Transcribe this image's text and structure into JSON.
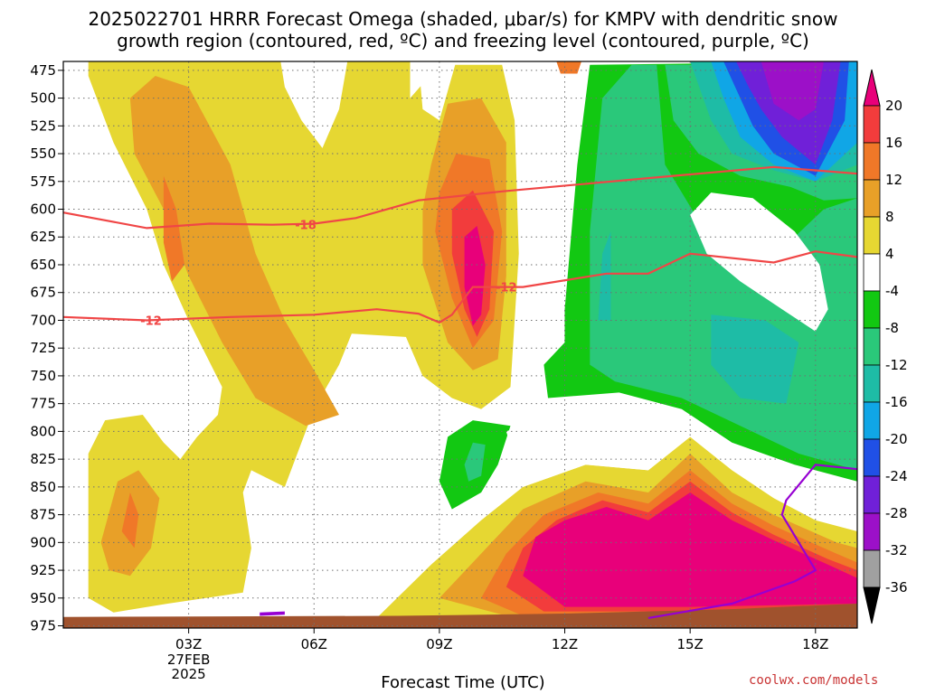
{
  "title_line1": "2025022701 HRRR Forecast Omega (shaded, μbar/s) for KMPV with dendritic snow",
  "title_line2": "growth region (contoured, red, ºC) and freezing level (contoured, purple, ºC)",
  "credit": "coolwx.com/models",
  "chart_data": {
    "type": "heatmap",
    "xlabel": "Forecast Time (UTC)",
    "x_ticks": [
      "03Z",
      "06Z",
      "09Z",
      "12Z",
      "15Z",
      "18Z"
    ],
    "x_tick_sublabels": [
      "27FEB",
      "2025"
    ],
    "y_ticks": [
      475,
      500,
      525,
      550,
      575,
      600,
      625,
      650,
      675,
      700,
      725,
      750,
      775,
      800,
      825,
      850,
      875,
      900,
      925,
      950,
      975
    ],
    "y_axis": "pressure (hPa), inverted",
    "grid": true,
    "colorbar_ticks": [
      20,
      16,
      12,
      8,
      4,
      -4,
      -8,
      -12,
      -16,
      -20,
      -24,
      -28,
      -32,
      -36
    ],
    "colorbar_colors": [
      "#e8007a",
      "#f23c3c",
      "#f07828",
      "#e8a028",
      "#e6d732",
      "#ffffff",
      "#12c812",
      "#2ac87a",
      "#1ebca6",
      "#10a6e6",
      "#2050e6",
      "#7020d8",
      "#9c10c8",
      "#a0a0a0",
      "#000000"
    ],
    "contours": [
      {
        "label": "-18",
        "color": "#f04646",
        "points": [
          [
            0.0,
            603
          ],
          [
            2.0,
            617
          ],
          [
            3.5,
            613
          ],
          [
            5.0,
            614
          ],
          [
            6.0,
            613
          ],
          [
            7.0,
            608
          ],
          [
            8.5,
            592
          ],
          [
            10.5,
            584
          ],
          [
            14.0,
            572
          ],
          [
            17.0,
            562
          ],
          [
            18.0,
            565
          ],
          [
            19.0,
            568
          ]
        ]
      },
      {
        "label": "-12",
        "color": "#f04646",
        "points": [
          [
            0.0,
            697
          ],
          [
            2.0,
            700
          ],
          [
            4.0,
            697
          ],
          [
            6.0,
            695
          ],
          [
            7.5,
            690
          ],
          [
            8.5,
            694
          ],
          [
            9.0,
            702
          ],
          [
            9.3,
            695
          ],
          [
            9.8,
            670
          ],
          [
            11.0,
            670
          ],
          [
            13.0,
            658
          ],
          [
            14.0,
            658
          ],
          [
            15.0,
            640
          ],
          [
            17.0,
            648
          ],
          [
            18.0,
            638
          ],
          [
            19.0,
            643
          ]
        ]
      },
      {
        "label": "",
        "color": "#9600d2",
        "points": [
          [
            14.0,
            968
          ],
          [
            16.0,
            955
          ],
          [
            17.5,
            935
          ],
          [
            18.0,
            925
          ],
          [
            17.6,
            900
          ],
          [
            17.2,
            875
          ],
          [
            17.3,
            862
          ],
          [
            18.0,
            830
          ],
          [
            19.0,
            834
          ]
        ]
      }
    ]
  }
}
